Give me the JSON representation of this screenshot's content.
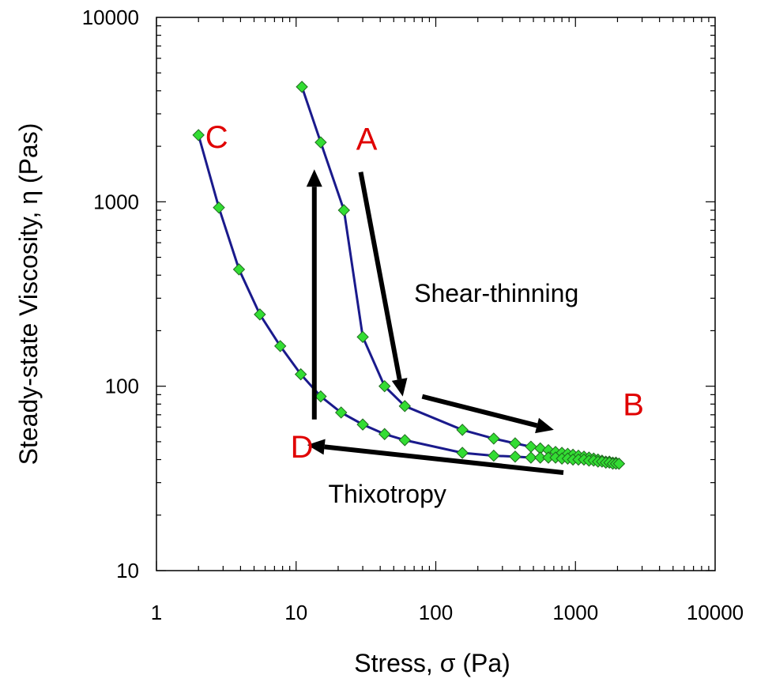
{
  "chart_data": {
    "type": "scatter",
    "xscale": "log",
    "yscale": "log",
    "xlim": [
      1,
      10000
    ],
    "ylim": [
      10,
      10000
    ],
    "xticks": [
      "1",
      "10",
      "100",
      "1000",
      "10000"
    ],
    "yticks": [
      "10",
      "100",
      "1000",
      "10000"
    ],
    "xlabel": "Stress, σ (Pa)",
    "ylabel": "Steady-state Viscosity, η (Pas)",
    "grid": false,
    "colors": {
      "line": "#1a1a8c",
      "marker": "#33dd33",
      "marker_edge": "#1f6a1f",
      "point_label": "#e00000",
      "arrow": "#000000"
    },
    "series": [
      {
        "x": [
          11,
          15,
          22,
          30,
          43,
          60,
          155,
          260,
          370,
          480,
          560,
          640,
          720,
          800,
          880,
          960,
          1050,
          1150,
          1250,
          1350,
          1450,
          1550,
          1650,
          1750,
          1850,
          1950,
          2050
        ],
        "y": [
          4200,
          2100,
          900,
          185,
          100,
          78,
          58,
          52,
          49,
          47,
          46,
          45,
          44,
          43.5,
          43,
          42.5,
          42,
          41.5,
          41,
          40.5,
          40,
          39.5,
          39,
          39,
          38.5,
          38.5,
          38
        ]
      },
      {
        "x": [
          2,
          2.8,
          3.9,
          5.5,
          7.7,
          10.8,
          15,
          21,
          30,
          43,
          60,
          155,
          260,
          370,
          480,
          560,
          640,
          720,
          800,
          880,
          960,
          1050,
          1150,
          1250,
          1350,
          1450,
          1550,
          1650,
          1750,
          1850,
          1950,
          2050
        ],
        "y": [
          2300,
          930,
          430,
          245,
          165,
          116,
          88,
          72,
          62,
          55,
          51,
          43.5,
          42,
          41.5,
          41,
          41,
          41,
          41,
          40.5,
          40.5,
          40,
          40,
          40,
          39.5,
          39.5,
          39,
          39,
          38.5,
          38.5,
          38,
          38,
          38
        ]
      }
    ],
    "point_labels": [
      {
        "text": "A",
        "x": 32,
        "y": 2200
      },
      {
        "text": "B",
        "x": 2600,
        "y": 80
      },
      {
        "text": "C",
        "x": 2.7,
        "y": 2250
      },
      {
        "text": "D",
        "x": 11,
        "y": 47
      }
    ],
    "annotations": [
      {
        "text": "Shear-thinning",
        "x": 70,
        "y": 320
      },
      {
        "text": "Thixotropy",
        "x": 17,
        "y": 26
      }
    ],
    "arrows": [
      {
        "from": [
          29,
          1450
        ],
        "to": [
          58,
          88
        ]
      },
      {
        "from": [
          80,
          88
        ],
        "to": [
          700,
          58
        ]
      },
      {
        "from": [
          820,
          34
        ],
        "to": [
          12,
          48
        ]
      },
      {
        "from": [
          13.5,
          66
        ],
        "to": [
          13.5,
          1500
        ]
      }
    ]
  }
}
